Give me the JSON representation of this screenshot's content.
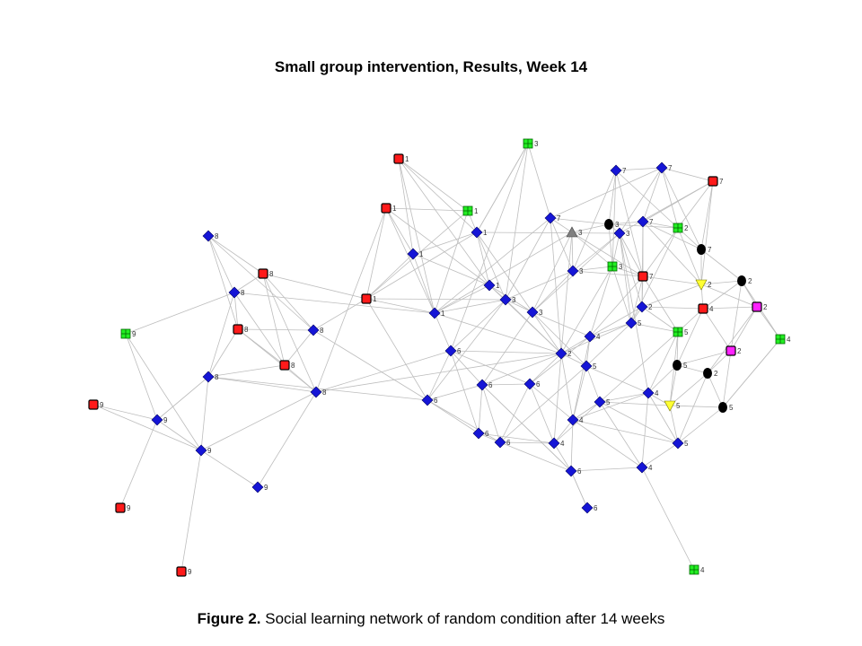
{
  "title": "Small group intervention, Results, Week 14",
  "caption": {
    "label": "Figure 2.",
    "text": " Social learning network of random condition after 14 weeks"
  },
  "colors": {
    "diamond": "#1515d6",
    "square_red": "#ff1a1a",
    "square_green": "#22ee22",
    "square_magenta": "#ff22ff",
    "circle_black": "#000000",
    "triangle_gray": "#808080",
    "triangle_yellow": "#ffff33",
    "edge": "#bdbdbd"
  },
  "nodes": [
    {
      "id": "r1a",
      "shape": "red-square",
      "label": "1"
    },
    {
      "id": "r1b",
      "shape": "red-square",
      "label": "1"
    },
    {
      "id": "r1c",
      "shape": "red-square",
      "label": "1"
    },
    {
      "id": "g1",
      "shape": "green-square",
      "label": "1"
    },
    {
      "id": "b1a",
      "shape": "diamond",
      "label": "1"
    },
    {
      "id": "b1b",
      "shape": "diamond",
      "label": "1"
    },
    {
      "id": "b1c",
      "shape": "diamond",
      "label": "1"
    },
    {
      "id": "b1d",
      "shape": "diamond",
      "label": "1"
    },
    {
      "id": "g3a",
      "shape": "green-square",
      "label": "3"
    },
    {
      "id": "g3b",
      "shape": "green-square",
      "label": "3"
    },
    {
      "id": "gt3",
      "shape": "gray-triangle",
      "label": "3"
    },
    {
      "id": "k3",
      "shape": "black-circle",
      "label": "3"
    },
    {
      "id": "b3a",
      "shape": "diamond",
      "label": "3"
    },
    {
      "id": "b3b",
      "shape": "diamond",
      "label": "3"
    },
    {
      "id": "b3c",
      "shape": "diamond",
      "label": "3"
    },
    {
      "id": "b3d",
      "shape": "diamond",
      "label": "3"
    },
    {
      "id": "b7a",
      "shape": "diamond",
      "label": "7"
    },
    {
      "id": "b7b",
      "shape": "diamond",
      "label": "7"
    },
    {
      "id": "b7c",
      "shape": "diamond",
      "label": "7"
    },
    {
      "id": "b7d",
      "shape": "diamond",
      "label": "7"
    },
    {
      "id": "r7a",
      "shape": "red-square",
      "label": "7"
    },
    {
      "id": "r7b",
      "shape": "red-square",
      "label": "7"
    },
    {
      "id": "k7",
      "shape": "black-circle",
      "label": "7"
    },
    {
      "id": "g2",
      "shape": "green-square",
      "label": "2"
    },
    {
      "id": "y2",
      "shape": "yellow-triangle",
      "label": "2"
    },
    {
      "id": "k2a",
      "shape": "black-circle",
      "label": "2"
    },
    {
      "id": "k2b",
      "shape": "black-circle",
      "label": "2"
    },
    {
      "id": "m2a",
      "shape": "magenta-square",
      "label": "2"
    },
    {
      "id": "m2b",
      "shape": "magenta-square",
      "label": "2"
    },
    {
      "id": "b2a",
      "shape": "diamond",
      "label": "2"
    },
    {
      "id": "b2b",
      "shape": "diamond",
      "label": "2"
    },
    {
      "id": "r4",
      "shape": "red-square",
      "label": "4"
    },
    {
      "id": "g4a",
      "shape": "green-square",
      "label": "4"
    },
    {
      "id": "g4b",
      "shape": "green-square",
      "label": "4"
    },
    {
      "id": "b4a",
      "shape": "diamond",
      "label": "4"
    },
    {
      "id": "b4b",
      "shape": "diamond",
      "label": "4"
    },
    {
      "id": "b4c",
      "shape": "diamond",
      "label": "4"
    },
    {
      "id": "b4d",
      "shape": "diamond",
      "label": "4"
    },
    {
      "id": "b4e",
      "shape": "diamond",
      "label": "4"
    },
    {
      "id": "b5a",
      "shape": "diamond",
      "label": "5"
    },
    {
      "id": "b5b",
      "shape": "diamond",
      "label": "5"
    },
    {
      "id": "b5c",
      "shape": "diamond",
      "label": "5"
    },
    {
      "id": "b5d",
      "shape": "diamond",
      "label": "5"
    },
    {
      "id": "g5",
      "shape": "green-square",
      "label": "5"
    },
    {
      "id": "k5a",
      "shape": "black-circle",
      "label": "5"
    },
    {
      "id": "k5b",
      "shape": "black-circle",
      "label": "5"
    },
    {
      "id": "y5",
      "shape": "yellow-triangle",
      "label": "5"
    },
    {
      "id": "b6a",
      "shape": "diamond",
      "label": "6"
    },
    {
      "id": "b6b",
      "shape": "diamond",
      "label": "6"
    },
    {
      "id": "b6c",
      "shape": "diamond",
      "label": "6"
    },
    {
      "id": "b6d",
      "shape": "diamond",
      "label": "6"
    },
    {
      "id": "b6e",
      "shape": "diamond",
      "label": "6"
    },
    {
      "id": "b6f",
      "shape": "diamond",
      "label": "6"
    },
    {
      "id": "b6g",
      "shape": "diamond",
      "label": "6"
    },
    {
      "id": "b6h",
      "shape": "diamond",
      "label": "6"
    },
    {
      "id": "b8a",
      "shape": "diamond",
      "label": "8"
    },
    {
      "id": "b8b",
      "shape": "diamond",
      "label": "8"
    },
    {
      "id": "b8c",
      "shape": "diamond",
      "label": "8"
    },
    {
      "id": "b8d",
      "shape": "diamond",
      "label": "8"
    },
    {
      "id": "b8e",
      "shape": "diamond",
      "label": "8"
    },
    {
      "id": "r8a",
      "shape": "red-square",
      "label": "8"
    },
    {
      "id": "r8b",
      "shape": "red-square",
      "label": "8"
    },
    {
      "id": "r8c",
      "shape": "red-square",
      "label": "8"
    },
    {
      "id": "g9",
      "shape": "green-square",
      "label": "9"
    },
    {
      "id": "r9a",
      "shape": "red-square",
      "label": "9"
    },
    {
      "id": "r9b",
      "shape": "red-square",
      "label": "9"
    },
    {
      "id": "r9c",
      "shape": "red-square",
      "label": "9"
    },
    {
      "id": "b9a",
      "shape": "diamond",
      "label": "9"
    },
    {
      "id": "b9b",
      "shape": "diamond",
      "label": "9"
    },
    {
      "id": "b9c",
      "shape": "diamond",
      "label": "9"
    }
  ],
  "edges": [
    [
      "b8a",
      "b8b"
    ],
    [
      "b8a",
      "r8a"
    ],
    [
      "b8a",
      "r8b"
    ],
    [
      "b8a",
      "b8c"
    ],
    [
      "b8b",
      "r8a"
    ],
    [
      "b8b",
      "r8b"
    ],
    [
      "b8b",
      "b8d"
    ],
    [
      "b8b",
      "r8c"
    ],
    [
      "r8a",
      "b8c"
    ],
    [
      "r8a",
      "r8c"
    ],
    [
      "r8a",
      "b8e"
    ],
    [
      "r8a",
      "r1c"
    ],
    [
      "r8b",
      "b8d"
    ],
    [
      "r8b",
      "r8c"
    ],
    [
      "r8b",
      "b8c"
    ],
    [
      "r8b",
      "b8e"
    ],
    [
      "b8c",
      "r8c"
    ],
    [
      "b8c",
      "r1c"
    ],
    [
      "b8d",
      "r8c"
    ],
    [
      "b8d",
      "b8e"
    ],
    [
      "b8d",
      "b9a"
    ],
    [
      "b8d",
      "b9b"
    ],
    [
      "r8c",
      "b8e"
    ],
    [
      "b8c",
      "b6b"
    ],
    [
      "b8e",
      "b9b"
    ],
    [
      "b8e",
      "b9c"
    ],
    [
      "b8e",
      "r1b"
    ],
    [
      "b8e",
      "b2a"
    ],
    [
      "b8e",
      "b6a"
    ],
    [
      "b8b",
      "b1d"
    ],
    [
      "b8d",
      "b6b"
    ],
    [
      "g9",
      "b8b"
    ],
    [
      "g9",
      "b9b"
    ],
    [
      "g9",
      "b9a"
    ],
    [
      "r9a",
      "b9a"
    ],
    [
      "r9a",
      "b9b"
    ],
    [
      "b9a",
      "b9b"
    ],
    [
      "b9a",
      "r9b"
    ],
    [
      "b9b",
      "b9c"
    ],
    [
      "b9b",
      "r9c"
    ],
    [
      "b9a",
      "b8d"
    ],
    [
      "r1c",
      "r1b"
    ],
    [
      "r1c",
      "b1a"
    ],
    [
      "r1c",
      "b1d"
    ],
    [
      "r1c",
      "b1b"
    ],
    [
      "r1c",
      "b3b"
    ],
    [
      "r1c",
      "g1"
    ],
    [
      "r1a",
      "b1a"
    ],
    [
      "r1a",
      "b1c"
    ],
    [
      "r1a",
      "b1d"
    ],
    [
      "r1a",
      "g1"
    ],
    [
      "r1a",
      "b1b"
    ],
    [
      "r1b",
      "b1a"
    ],
    [
      "r1b",
      "g1"
    ],
    [
      "r1b",
      "b1c"
    ],
    [
      "r1b",
      "b1d"
    ],
    [
      "g1",
      "b1b"
    ],
    [
      "g1",
      "b1d"
    ],
    [
      "b1a",
      "b1b"
    ],
    [
      "b1a",
      "b1d"
    ],
    [
      "b1a",
      "b1c"
    ],
    [
      "b1b",
      "b1c"
    ],
    [
      "b1b",
      "b3b"
    ],
    [
      "b1c",
      "b1d"
    ],
    [
      "b1c",
      "b3b"
    ],
    [
      "b1d",
      "b3b"
    ],
    [
      "b1d",
      "b7a"
    ],
    [
      "b1d",
      "gt3"
    ],
    [
      "b1d",
      "b2a"
    ],
    [
      "b1b",
      "b3d"
    ],
    [
      "b1b",
      "b3c"
    ],
    [
      "b1b",
      "g3a"
    ],
    [
      "b1c",
      "b3c"
    ],
    [
      "b1c",
      "b2a"
    ],
    [
      "g3a",
      "b3b"
    ],
    [
      "g3a",
      "b6a"
    ],
    [
      "g3a",
      "b7a"
    ],
    [
      "g3a",
      "b1b"
    ],
    [
      "b7a",
      "gt3"
    ],
    [
      "b7a",
      "b3a"
    ],
    [
      "b7a",
      "b3b"
    ],
    [
      "b7a",
      "b2a"
    ],
    [
      "b7a",
      "k3"
    ],
    [
      "b7a",
      "b7c"
    ],
    [
      "b7b",
      "b7c"
    ],
    [
      "b7b",
      "k3"
    ],
    [
      "b7b",
      "g2"
    ],
    [
      "b7b",
      "b3a"
    ],
    [
      "b7b",
      "r7b"
    ],
    [
      "b7b",
      "g3b"
    ],
    [
      "b7c",
      "r7a"
    ],
    [
      "b7c",
      "g2"
    ],
    [
      "b7c",
      "k7"
    ],
    [
      "b7c",
      "b7d"
    ],
    [
      "b7c",
      "b3d"
    ],
    [
      "r7a",
      "g2"
    ],
    [
      "r7a",
      "k7"
    ],
    [
      "r7a",
      "y2"
    ],
    [
      "r7a",
      "b7d"
    ],
    [
      "r7a",
      "b3d"
    ],
    [
      "k7",
      "y2"
    ],
    [
      "k7",
      "k2a"
    ],
    [
      "k7",
      "b7d"
    ],
    [
      "gt3",
      "k3"
    ],
    [
      "gt3",
      "g3b"
    ],
    [
      "gt3",
      "b3a"
    ],
    [
      "gt3",
      "b3c"
    ],
    [
      "gt3",
      "r7b"
    ],
    [
      "gt3",
      "b2a"
    ],
    [
      "k3",
      "b7d"
    ],
    [
      "k3",
      "g3b"
    ],
    [
      "k3",
      "b3d"
    ],
    [
      "k3",
      "g2"
    ],
    [
      "b3a",
      "b3b"
    ],
    [
      "b3a",
      "b3c"
    ],
    [
      "b3a",
      "b3d"
    ],
    [
      "b3a",
      "g3b"
    ],
    [
      "b3a",
      "r7b"
    ],
    [
      "b3b",
      "b3c"
    ],
    [
      "b3b",
      "b6a"
    ],
    [
      "b3b",
      "b2a"
    ],
    [
      "b3b",
      "b6b"
    ],
    [
      "b3c",
      "b3d"
    ],
    [
      "b3c",
      "b2a"
    ],
    [
      "b3c",
      "b4a"
    ],
    [
      "b3c",
      "b5a"
    ],
    [
      "b3c",
      "b6c"
    ],
    [
      "b3d",
      "g3b"
    ],
    [
      "b3d",
      "r7b"
    ],
    [
      "b3d",
      "b5b"
    ],
    [
      "b3d",
      "b2b"
    ],
    [
      "b3d",
      "b4b"
    ],
    [
      "g3b",
      "r7b"
    ],
    [
      "g3b",
      "b5b"
    ],
    [
      "g3b",
      "b4a"
    ],
    [
      "g3b",
      "b2a"
    ],
    [
      "b7d",
      "g2"
    ],
    [
      "b7d",
      "r7b"
    ],
    [
      "b7d",
      "y2"
    ],
    [
      "b7d",
      "b2b"
    ],
    [
      "g2",
      "k7"
    ],
    [
      "g2",
      "y2"
    ],
    [
      "g2",
      "r7b"
    ],
    [
      "g2",
      "b5b"
    ],
    [
      "r7b",
      "y2"
    ],
    [
      "r7b",
      "b2b"
    ],
    [
      "r7b",
      "b5b"
    ],
    [
      "r7b",
      "b4a"
    ],
    [
      "r7b",
      "g5"
    ],
    [
      "y2",
      "k2a"
    ],
    [
      "y2",
      "r4"
    ],
    [
      "y2",
      "m2a"
    ],
    [
      "y2",
      "b2b"
    ],
    [
      "k2a",
      "m2a"
    ],
    [
      "k2a",
      "r4"
    ],
    [
      "k2a",
      "g4a"
    ],
    [
      "k2a",
      "m2b"
    ],
    [
      "b2b",
      "r4"
    ],
    [
      "b2b",
      "b5b"
    ],
    [
      "b2b",
      "g5"
    ],
    [
      "b2b",
      "b4a"
    ],
    [
      "r4",
      "m2a"
    ],
    [
      "r4",
      "m2b"
    ],
    [
      "r4",
      "g5"
    ],
    [
      "r4",
      "k5a"
    ],
    [
      "m2a",
      "g4a"
    ],
    [
      "m2a",
      "m2b"
    ],
    [
      "m2a",
      "k2b"
    ],
    [
      "m2b",
      "k2b"
    ],
    [
      "m2b",
      "k5a"
    ],
    [
      "m2b",
      "k5b"
    ],
    [
      "b5b",
      "b4a"
    ],
    [
      "b5b",
      "g5"
    ],
    [
      "b5b",
      "b2a"
    ],
    [
      "b5b",
      "b5a"
    ],
    [
      "g5",
      "k5a"
    ],
    [
      "g5",
      "b4b"
    ],
    [
      "g5",
      "y5"
    ],
    [
      "g5",
      "b5c"
    ],
    [
      "k5a",
      "k2b"
    ],
    [
      "k5a",
      "y5"
    ],
    [
      "k5a",
      "b4b"
    ],
    [
      "k2b",
      "k5b"
    ],
    [
      "k2b",
      "y5"
    ],
    [
      "k2b",
      "b5d"
    ],
    [
      "g4a",
      "k5b"
    ],
    [
      "b4a",
      "b2a"
    ],
    [
      "b4a",
      "b5a"
    ],
    [
      "b4a",
      "b4c"
    ],
    [
      "b4a",
      "b6d"
    ],
    [
      "b2a",
      "b5a"
    ],
    [
      "b2a",
      "b6c"
    ],
    [
      "b2a",
      "b6d"
    ],
    [
      "b2a",
      "b4c"
    ],
    [
      "b2a",
      "b4d"
    ],
    [
      "b2a",
      "b6a"
    ],
    [
      "b5a",
      "b4c"
    ],
    [
      "b5a",
      "b5c"
    ],
    [
      "b5a",
      "b4b"
    ],
    [
      "b5a",
      "b6f"
    ],
    [
      "b4b",
      "b5c"
    ],
    [
      "b4b",
      "y5"
    ],
    [
      "b4b",
      "b4c"
    ],
    [
      "b4b",
      "b5d"
    ],
    [
      "y5",
      "k5b"
    ],
    [
      "y5",
      "b5d"
    ],
    [
      "y5",
      "b5c"
    ],
    [
      "k5b",
      "b5d"
    ],
    [
      "k5b",
      "g4a"
    ],
    [
      "b6a",
      "b6c"
    ],
    [
      "b6a",
      "b6d"
    ],
    [
      "b6a",
      "b6b"
    ],
    [
      "b6b",
      "b6c"
    ],
    [
      "b6b",
      "b6e"
    ],
    [
      "b6b",
      "b6f"
    ],
    [
      "b6c",
      "b6d"
    ],
    [
      "b6c",
      "b6e"
    ],
    [
      "b6c",
      "b6f"
    ],
    [
      "b6c",
      "b6g"
    ],
    [
      "b6d",
      "b4c"
    ],
    [
      "b6d",
      "b6f"
    ],
    [
      "b6d",
      "b4d"
    ],
    [
      "b6e",
      "b6f"
    ],
    [
      "b6e",
      "b4d"
    ],
    [
      "b6f",
      "b4d"
    ],
    [
      "b6f",
      "b6g"
    ],
    [
      "b4c",
      "b5c"
    ],
    [
      "b4c",
      "b4d"
    ],
    [
      "b4c",
      "b6g"
    ],
    [
      "b4c",
      "b4e"
    ],
    [
      "b4d",
      "b6g"
    ],
    [
      "b4d",
      "b5c"
    ],
    [
      "b6g",
      "b6h"
    ],
    [
      "b6g",
      "b4e"
    ],
    [
      "b5c",
      "b4e"
    ],
    [
      "b5c",
      "b5d"
    ],
    [
      "b4e",
      "b5d"
    ],
    [
      "b4e",
      "g4b"
    ],
    [
      "b4e",
      "b4b"
    ],
    [
      "b6h",
      "b6g"
    ],
    [
      "b6g",
      "b6c"
    ],
    [
      "b6b",
      "r1c"
    ],
    [
      "b6a",
      "b1d"
    ],
    [
      "b6e",
      "b6a"
    ],
    [
      "b5d",
      "b4c"
    ]
  ]
}
